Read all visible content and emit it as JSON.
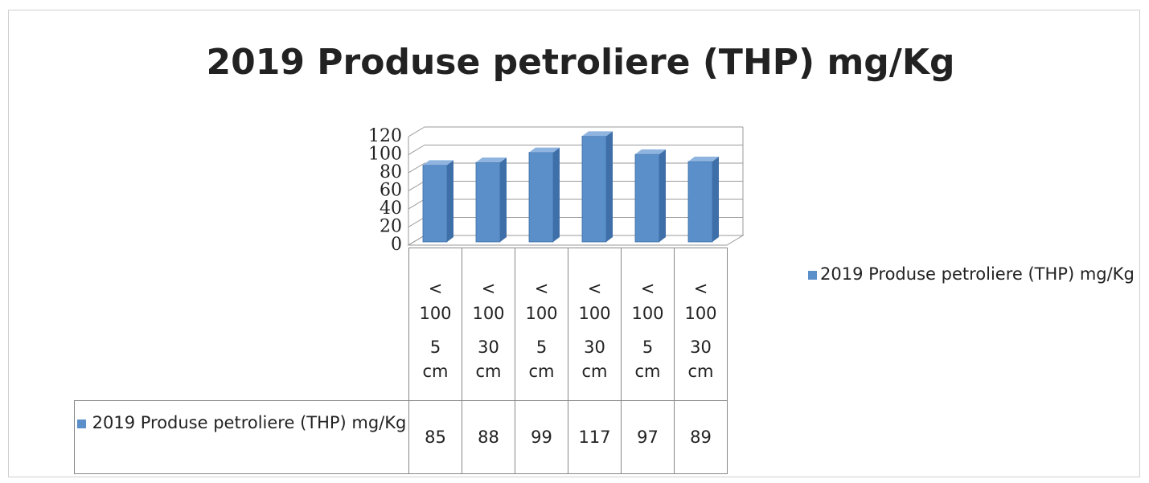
{
  "chart_data": {
    "type": "bar3d",
    "title": "2019 Produse petroliere (THP) mg/Kg",
    "categories": [
      [
        "<",
        "100",
        "5",
        "cm"
      ],
      [
        "<",
        "100",
        "30",
        "cm"
      ],
      [
        "<",
        "100",
        "5",
        "cm"
      ],
      [
        "<",
        "100",
        "30",
        "cm"
      ],
      [
        "<",
        "100",
        "5",
        "cm"
      ],
      [
        "<",
        "100",
        "30",
        "cm"
      ]
    ],
    "series": [
      {
        "name": "2019 Produse petroliere (THP) mg/Kg",
        "color": "#5b8fc9",
        "values": [
          85,
          88,
          99,
          117,
          97,
          89
        ]
      }
    ],
    "ylim": [
      0,
      120
    ],
    "yticks": [
      0,
      20,
      40,
      60,
      80,
      100,
      120
    ],
    "grid": true,
    "legend": "right",
    "data_table": true
  }
}
